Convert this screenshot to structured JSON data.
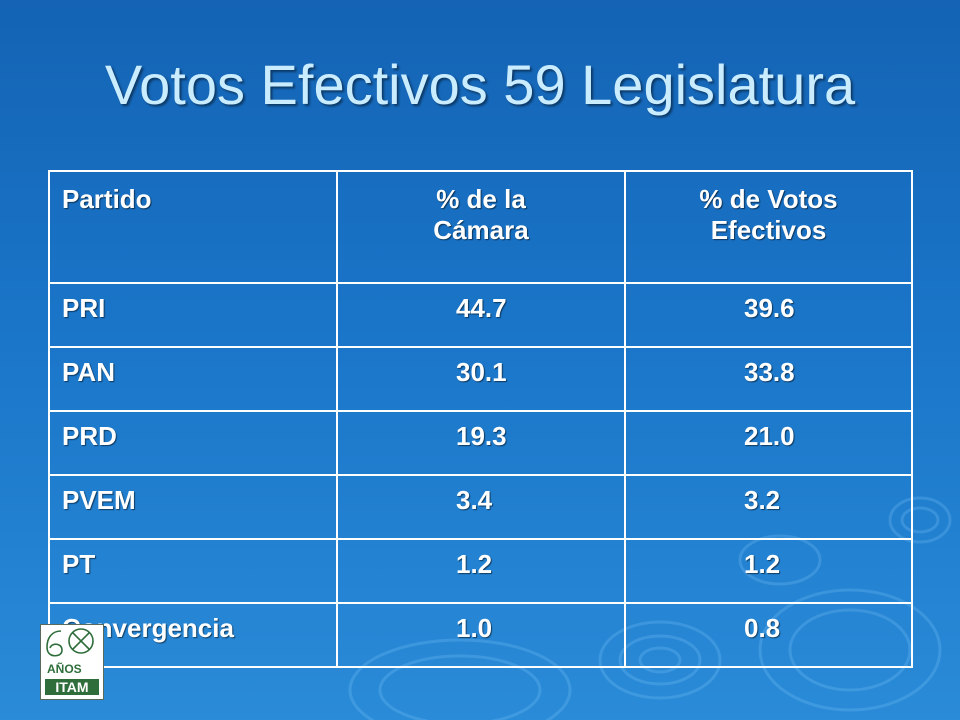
{
  "slide": {
    "title": "Votos Efectivos 59 Legislatura"
  },
  "table": {
    "headers": {
      "partido": "Partido",
      "camara_line1": "% de la",
      "camara_line2": "Cámara",
      "votos_line1": "% de Votos",
      "votos_line2": "Efectivos"
    },
    "rows": [
      {
        "partido": "PRI",
        "camara": "44.7",
        "votos": "39.6"
      },
      {
        "partido": "PAN",
        "camara": "30.1",
        "votos": "33.8"
      },
      {
        "partido": "PRD",
        "camara": "19.3",
        "votos": "21.0"
      },
      {
        "partido": "PVEM",
        "camara": "3.4",
        "votos": "3.2"
      },
      {
        "partido": "PT",
        "camara": "1.2",
        "votos": "1.2"
      },
      {
        "partido": "Convergencia",
        "camara": "1.0",
        "votos": "0.8"
      }
    ]
  },
  "logo": {
    "text_number": "60",
    "text_years": "AÑOS",
    "text_name": "ITAM",
    "icon": "itam-60-anos-logo"
  },
  "colors": {
    "background_top": "#1463b4",
    "background_bottom": "#2a8bd8",
    "title": "#c9ecff",
    "table_text": "#ffffff",
    "logo_green": "#2f6e3a"
  }
}
